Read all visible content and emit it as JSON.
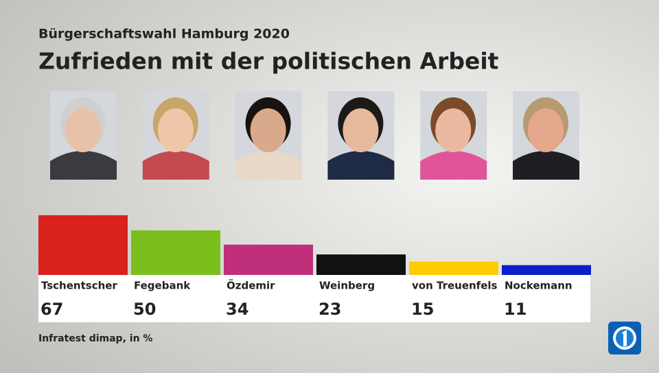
{
  "chart_data": {
    "type": "bar",
    "subtitle": "Bürgerschaftswahl Hamburg 2020",
    "title": "Zufrieden mit der politischen Arbeit",
    "categories": [
      "Tschentscher",
      "Fegebank",
      "Özdemir",
      "Weinberg",
      "von Treuenfels",
      "Nockemann"
    ],
    "values": [
      67,
      50,
      34,
      23,
      15,
      11
    ],
    "colors": [
      "#d9211d",
      "#7abf1e",
      "#c0307a",
      "#111111",
      "#ffcc00",
      "#0a1fc8"
    ],
    "source": "Infratest dimap, in %"
  }
}
